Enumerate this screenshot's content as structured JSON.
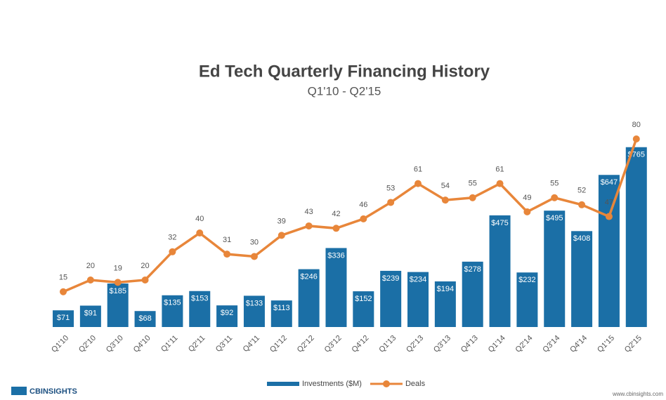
{
  "chart_data": {
    "type": "bar-line",
    "title": "Ed Tech Quarterly Financing History",
    "subtitle": "Q1'10 - Q2'15",
    "categories": [
      "Q1'10",
      "Q2'10",
      "Q3'10",
      "Q4'10",
      "Q1'11",
      "Q2'11",
      "Q3'11",
      "Q4'11",
      "Q1'12",
      "Q2'12",
      "Q3'12",
      "Q4'12",
      "Q1'13",
      "Q2'13",
      "Q3'13",
      "Q4'13",
      "Q1'14",
      "Q2'14",
      "Q3'14",
      "Q4'14",
      "Q1'15",
      "Q2'15"
    ],
    "series": [
      {
        "name": "Investments ($M)",
        "type": "bar",
        "color": "#1b6fa6",
        "values": [
          71,
          91,
          185,
          68,
          135,
          153,
          92,
          133,
          113,
          246,
          336,
          152,
          239,
          234,
          194,
          278,
          475,
          232,
          495,
          408,
          647,
          765
        ],
        "value_labels": [
          "$71",
          "$91",
          "$185",
          "$68",
          "$135",
          "$153",
          "$92",
          "$133",
          "$113",
          "$246",
          "$336",
          "$152",
          "$239",
          "$234",
          "$194",
          "$278",
          "$475",
          "$232",
          "$495",
          "$408",
          "$647",
          "$765"
        ]
      },
      {
        "name": "Deals",
        "type": "line",
        "axis": "y2",
        "color": "#e8863a",
        "values": [
          15,
          20,
          19,
          20,
          32,
          40,
          31,
          30,
          39,
          43,
          42,
          46,
          53,
          61,
          54,
          55,
          61,
          49,
          55,
          52,
          47,
          80
        ]
      }
    ],
    "ylim": [
      0,
      1000
    ],
    "y2lim": [
      0,
      100
    ],
    "legend": "bottom",
    "footer": {
      "logo": "CBINSIGHTS",
      "url": "www.cbinsights.com"
    }
  }
}
